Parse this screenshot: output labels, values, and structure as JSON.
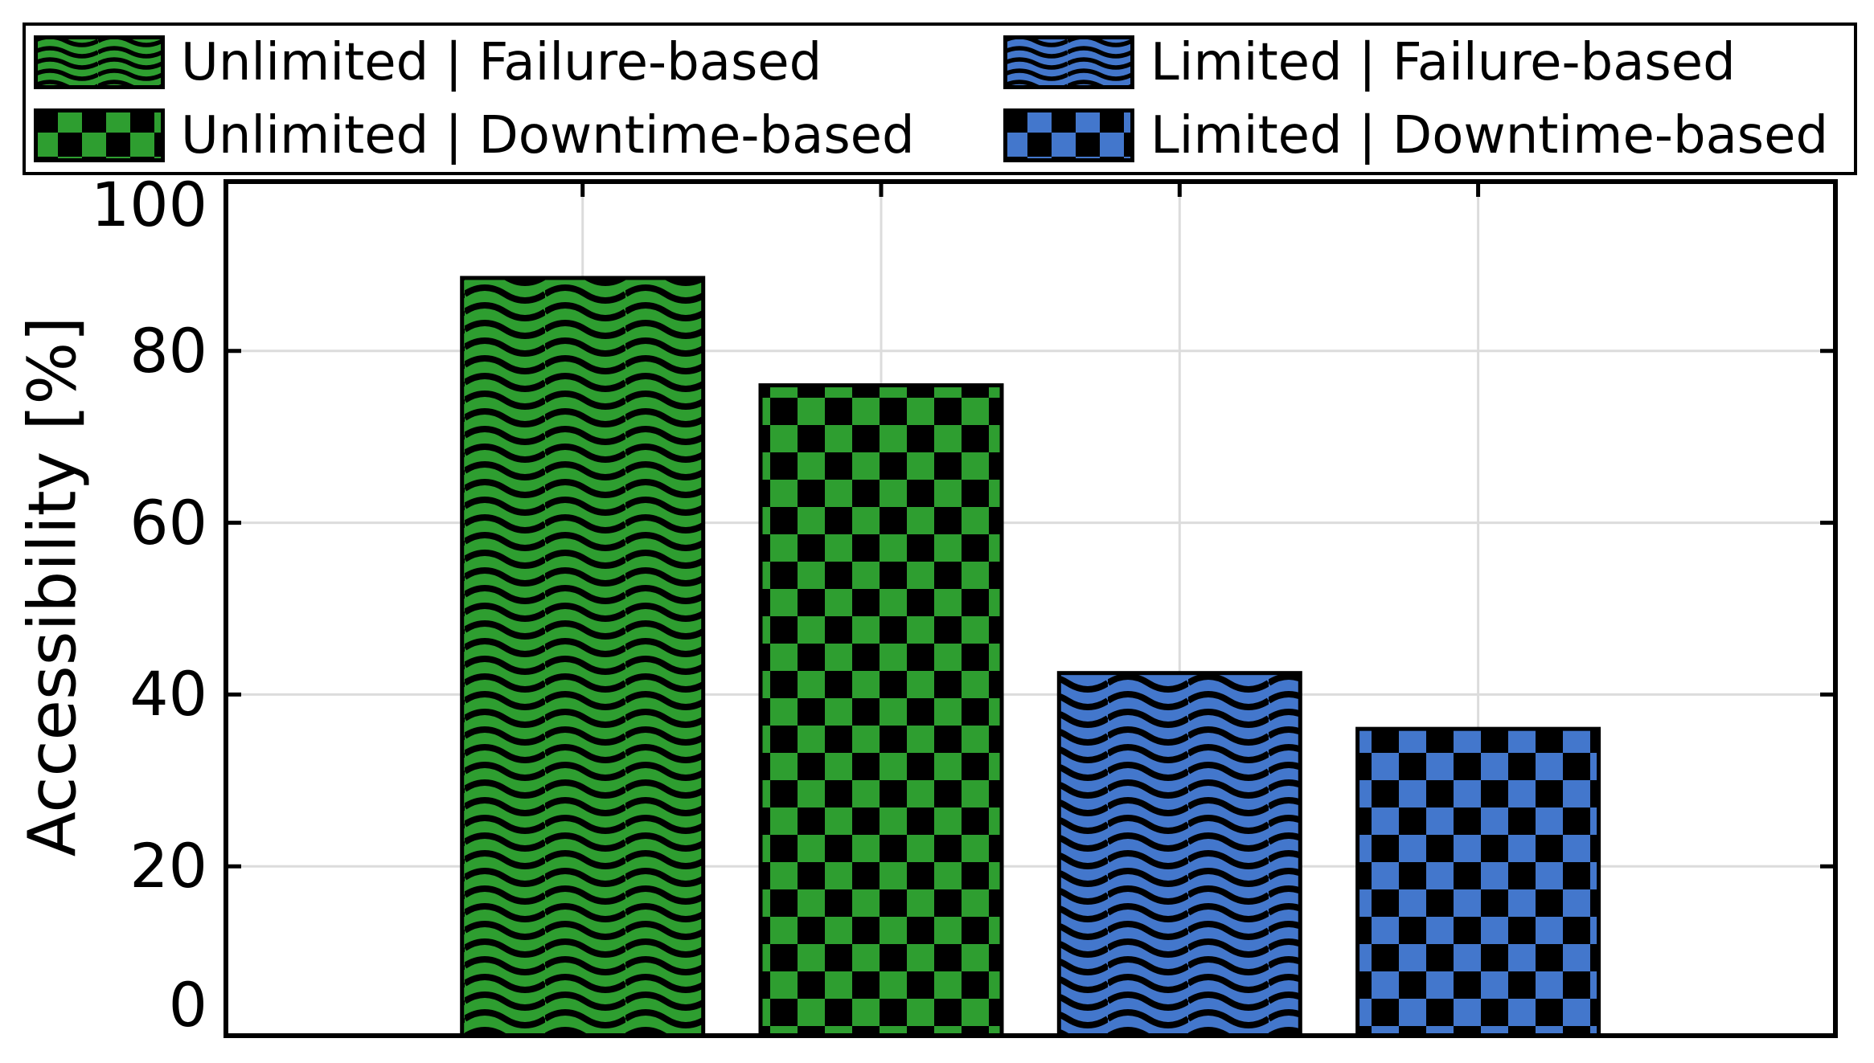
{
  "figure": {
    "background": "#FFFFFF"
  },
  "colors": {
    "green": "#2E9E30",
    "blue": "#4377CC",
    "hatch": "#000000",
    "grid": "#DCDCDC",
    "axis": "#000000",
    "text": "#000000",
    "background": "#FFFFFF"
  },
  "chart_data": {
    "type": "bar",
    "title": "",
    "xlabel": "",
    "ylabel": "Accessibility [%]",
    "ylim": [
      0,
      100
    ],
    "yticks": [
      0,
      20,
      40,
      60,
      80,
      100
    ],
    "ytick_labels": [
      "0",
      "20",
      "40",
      "60",
      "80",
      "100"
    ],
    "xtick_labels": [],
    "grid": true,
    "legend_position": "top",
    "categories": [
      "Unlimited | Failure-based",
      "Unlimited | Downtime-based",
      "Limited | Failure-based",
      "Limited | Downtime-based"
    ],
    "values": [
      88.5,
      76,
      42.5,
      36
    ],
    "bars": [
      {
        "label": "Unlimited | Failure-based",
        "value": 88.5,
        "color": "green",
        "pattern": "wave"
      },
      {
        "label": "Unlimited | Downtime-based",
        "value": 76,
        "color": "green",
        "pattern": "checker"
      },
      {
        "label": "Limited | Failure-based",
        "value": 42.5,
        "color": "blue",
        "pattern": "wave"
      },
      {
        "label": "Limited | Downtime-based",
        "value": 36,
        "color": "blue",
        "pattern": "checker"
      }
    ],
    "legend": {
      "entries": [
        {
          "label": "Unlimited | Failure-based",
          "color": "green",
          "pattern": "wave"
        },
        {
          "label": "Limited | Failure-based",
          "color": "blue",
          "pattern": "wave"
        },
        {
          "label": "Unlimited | Downtime-based",
          "color": "green",
          "pattern": "checker"
        },
        {
          "label": "Limited | Downtime-based",
          "color": "blue",
          "pattern": "checker"
        }
      ]
    }
  }
}
